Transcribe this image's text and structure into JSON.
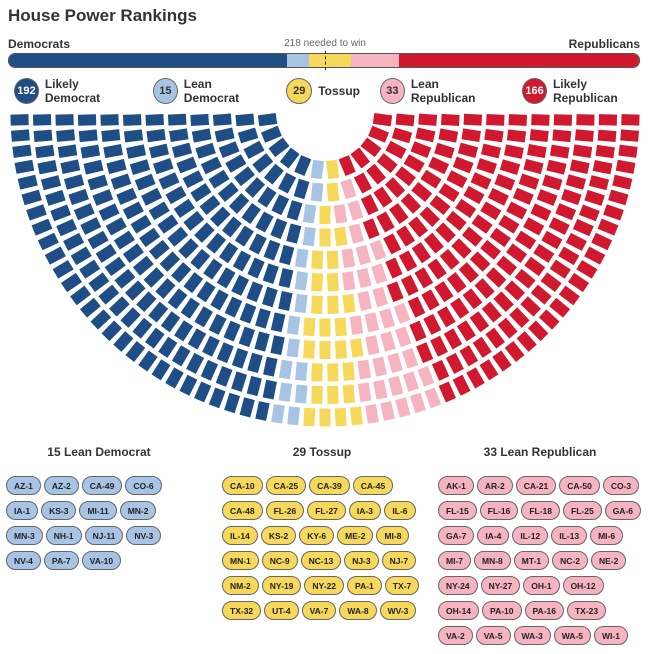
{
  "title": "House Power Rankings",
  "bar": {
    "left_label": "Democrats",
    "right_label": "Republicans",
    "needed_label": "218 needed to win",
    "needed": 218,
    "total": 435
  },
  "colors": {
    "likely_dem": "#1f4e87",
    "lean_dem": "#a8c4e5",
    "tossup": "#f6d85a",
    "lean_rep": "#f6b3c0",
    "likely_rep": "#d0182e"
  },
  "chart_data": {
    "type": "hemicycle",
    "title": "House Power Rankings",
    "categories": [
      {
        "key": "likely_dem",
        "count": "192",
        "label": "Likely Democrat",
        "value": 192
      },
      {
        "key": "lean_dem",
        "count": "15",
        "label": "Lean Democrat",
        "value": 15
      },
      {
        "key": "tossup",
        "count": "29",
        "label": "Tossup",
        "value": 29
      },
      {
        "key": "lean_rep",
        "count": "33",
        "label": "Lean Republican",
        "value": 33
      },
      {
        "key": "likely_rep",
        "count": "166",
        "label": "Likely Republican",
        "value": 166
      }
    ]
  },
  "lists": [
    {
      "key": "lean_dem",
      "heading": "15 Lean Democrat",
      "seats": [
        "AZ-1",
        "AZ-2",
        "CA-49",
        "CO-6",
        "IA-1",
        "KS-3",
        "MI-11",
        "MN-2",
        "MN-3",
        "NH-1",
        "NJ-11",
        "NV-3",
        "NV-4",
        "PA-7",
        "VA-10"
      ]
    },
    {
      "key": "tossup",
      "heading": "29 Tossup",
      "seats": [
        "CA-10",
        "CA-25",
        "CA-39",
        "CA-45",
        "CA-48",
        "FL-26",
        "FL-27",
        "IA-3",
        "IL-6",
        "IL-14",
        "KS-2",
        "KY-6",
        "ME-2",
        "MI-8",
        "MN-1",
        "NC-9",
        "NC-13",
        "NJ-3",
        "NJ-7",
        "NM-2",
        "NY-19",
        "NY-22",
        "PA-1",
        "TX-7",
        "TX-32",
        "UT-4",
        "VA-7",
        "WA-8",
        "WV-3"
      ]
    },
    {
      "key": "lean_rep",
      "heading": "33 Lean Republican",
      "seats": [
        "AK-1",
        "AR-2",
        "CA-21",
        "CA-50",
        "CO-3",
        "FL-15",
        "FL-16",
        "FL-18",
        "FL-25",
        "GA-6",
        "GA-7",
        "IA-4",
        "IL-12",
        "IL-13",
        "MI-6",
        "MI-7",
        "MN-8",
        "MT-1",
        "NC-2",
        "NE-2",
        "NY-24",
        "NY-27",
        "OH-1",
        "OH-12",
        "OH-14",
        "PA-10",
        "PA-16",
        "TX-23",
        "VA-2",
        "VA-5",
        "WA-3",
        "WA-5",
        "WI-1"
      ]
    }
  ]
}
